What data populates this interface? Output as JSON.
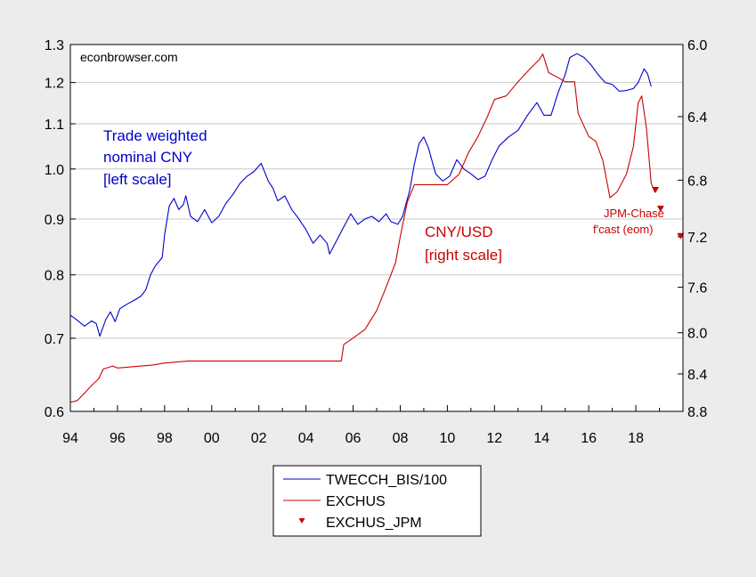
{
  "chart_data": {
    "type": "line",
    "watermark": "econbrowser.com",
    "x_ticks": [
      "94",
      "96",
      "98",
      "00",
      "02",
      "04",
      "06",
      "08",
      "10",
      "12",
      "14",
      "16",
      "18"
    ],
    "xlim": [
      1994.0,
      2020.0
    ],
    "left_axis": {
      "scale": "log",
      "ylim": [
        0.6,
        1.3
      ],
      "ticks": [
        "0.6",
        "0.7",
        "0.8",
        "0.9",
        "1.0",
        "1.1",
        "1.2",
        "1.3"
      ],
      "gridlines": [
        0.7,
        0.8,
        0.9,
        1.0,
        1.1,
        1.2
      ]
    },
    "right_axis": {
      "scale": "reciprocal",
      "ylim": [
        8.8,
        6.0
      ],
      "ticks": [
        "6.0",
        "6.4",
        "6.8",
        "7.2",
        "7.6",
        "8.0",
        "8.4",
        "8.8"
      ]
    },
    "annotations": {
      "twc": [
        "Trade weighted",
        "nominal CNY",
        "[left scale]"
      ],
      "exc": [
        "CNY/USD",
        "[right scale]"
      ],
      "jpm": [
        "JPM-Chase",
        "f'cast (eom)"
      ]
    },
    "legend": {
      "placement": "bottom-center",
      "entries": [
        "TWECCH_BIS/100",
        "EXCHUS",
        "EXCHUS_JPM"
      ]
    },
    "series": [
      {
        "name": "TWECCH_BIS/100",
        "axis": "left",
        "color": "#0000cc",
        "points": [
          [
            1994.0,
            0.735
          ],
          [
            1994.3,
            0.727
          ],
          [
            1994.6,
            0.718
          ],
          [
            1994.9,
            0.726
          ],
          [
            1995.1,
            0.722
          ],
          [
            1995.25,
            0.703
          ],
          [
            1995.5,
            0.728
          ],
          [
            1995.7,
            0.74
          ],
          [
            1995.9,
            0.725
          ],
          [
            1996.1,
            0.745
          ],
          [
            1996.4,
            0.752
          ],
          [
            1996.7,
            0.758
          ],
          [
            1997.0,
            0.765
          ],
          [
            1997.2,
            0.775
          ],
          [
            1997.4,
            0.8
          ],
          [
            1997.6,
            0.815
          ],
          [
            1997.9,
            0.83
          ],
          [
            1998.0,
            0.87
          ],
          [
            1998.2,
            0.925
          ],
          [
            1998.4,
            0.94
          ],
          [
            1998.6,
            0.918
          ],
          [
            1998.8,
            0.928
          ],
          [
            1998.9,
            0.945
          ],
          [
            1999.1,
            0.905
          ],
          [
            1999.4,
            0.895
          ],
          [
            1999.7,
            0.918
          ],
          [
            2000.0,
            0.893
          ],
          [
            2000.3,
            0.905
          ],
          [
            2000.6,
            0.93
          ],
          [
            2000.9,
            0.948
          ],
          [
            2001.2,
            0.97
          ],
          [
            2001.5,
            0.985
          ],
          [
            2001.8,
            0.995
          ],
          [
            2002.1,
            1.012
          ],
          [
            2002.4,
            0.975
          ],
          [
            2002.6,
            0.96
          ],
          [
            2002.8,
            0.935
          ],
          [
            2003.1,
            0.945
          ],
          [
            2003.4,
            0.918
          ],
          [
            2003.7,
            0.9
          ],
          [
            2004.0,
            0.88
          ],
          [
            2004.3,
            0.855
          ],
          [
            2004.6,
            0.87
          ],
          [
            2004.9,
            0.855
          ],
          [
            2005.0,
            0.836
          ],
          [
            2005.3,
            0.86
          ],
          [
            2005.6,
            0.885
          ],
          [
            2005.9,
            0.91
          ],
          [
            2006.2,
            0.89
          ],
          [
            2006.5,
            0.9
          ],
          [
            2006.8,
            0.905
          ],
          [
            2007.1,
            0.895
          ],
          [
            2007.4,
            0.91
          ],
          [
            2007.6,
            0.895
          ],
          [
            2007.9,
            0.89
          ],
          [
            2008.1,
            0.905
          ],
          [
            2008.4,
            0.955
          ],
          [
            2008.6,
            1.01
          ],
          [
            2008.8,
            1.055
          ],
          [
            2009.0,
            1.07
          ],
          [
            2009.2,
            1.045
          ],
          [
            2009.5,
            0.99
          ],
          [
            2009.8,
            0.975
          ],
          [
            2010.1,
            0.985
          ],
          [
            2010.4,
            1.02
          ],
          [
            2010.7,
            1.0
          ],
          [
            2011.0,
            0.99
          ],
          [
            2011.3,
            0.978
          ],
          [
            2011.6,
            0.985
          ],
          [
            2011.9,
            1.02
          ],
          [
            2012.2,
            1.05
          ],
          [
            2012.6,
            1.07
          ],
          [
            2013.0,
            1.085
          ],
          [
            2013.4,
            1.12
          ],
          [
            2013.8,
            1.15
          ],
          [
            2014.1,
            1.12
          ],
          [
            2014.4,
            1.12
          ],
          [
            2014.7,
            1.175
          ],
          [
            2015.0,
            1.22
          ],
          [
            2015.2,
            1.265
          ],
          [
            2015.5,
            1.275
          ],
          [
            2015.8,
            1.265
          ],
          [
            2016.1,
            1.245
          ],
          [
            2016.4,
            1.22
          ],
          [
            2016.7,
            1.2
          ],
          [
            2017.0,
            1.195
          ],
          [
            2017.3,
            1.178
          ],
          [
            2017.6,
            1.18
          ],
          [
            2017.9,
            1.185
          ],
          [
            2018.1,
            1.2
          ],
          [
            2018.35,
            1.235
          ],
          [
            2018.5,
            1.222
          ],
          [
            2018.65,
            1.19
          ]
        ]
      },
      {
        "name": "EXCHUS",
        "axis": "right",
        "color": "#cc0000",
        "points": [
          [
            1994.0,
            8.7
          ],
          [
            1994.3,
            8.68
          ],
          [
            1994.6,
            8.6
          ],
          [
            1994.9,
            8.52
          ],
          [
            1995.2,
            8.45
          ],
          [
            1995.4,
            8.35
          ],
          [
            1995.8,
            8.32
          ],
          [
            1996.0,
            8.34
          ],
          [
            1996.5,
            8.33
          ],
          [
            1997.0,
            8.32
          ],
          [
            1997.5,
            8.31
          ],
          [
            1998.0,
            8.29
          ],
          [
            1998.5,
            8.28
          ],
          [
            1999.0,
            8.27
          ],
          [
            2000.0,
            8.27
          ],
          [
            2001.0,
            8.27
          ],
          [
            2002.0,
            8.27
          ],
          [
            2003.0,
            8.27
          ],
          [
            2004.0,
            8.27
          ],
          [
            2005.0,
            8.27
          ],
          [
            2005.5,
            8.27
          ],
          [
            2005.6,
            8.11
          ],
          [
            2006.0,
            8.05
          ],
          [
            2006.5,
            7.97
          ],
          [
            2007.0,
            7.8
          ],
          [
            2007.4,
            7.6
          ],
          [
            2007.8,
            7.4
          ],
          [
            2008.0,
            7.2
          ],
          [
            2008.3,
            6.95
          ],
          [
            2008.6,
            6.83
          ],
          [
            2009.0,
            6.83
          ],
          [
            2010.0,
            6.83
          ],
          [
            2010.5,
            6.76
          ],
          [
            2010.9,
            6.62
          ],
          [
            2011.3,
            6.52
          ],
          [
            2011.7,
            6.4
          ],
          [
            2012.0,
            6.3
          ],
          [
            2012.5,
            6.28
          ],
          [
            2013.0,
            6.2
          ],
          [
            2013.5,
            6.13
          ],
          [
            2013.9,
            6.08
          ],
          [
            2014.05,
            6.05
          ],
          [
            2014.3,
            6.15
          ],
          [
            2014.6,
            6.17
          ],
          [
            2015.0,
            6.2
          ],
          [
            2015.4,
            6.2
          ],
          [
            2015.55,
            6.38
          ],
          [
            2016.0,
            6.52
          ],
          [
            2016.3,
            6.55
          ],
          [
            2016.6,
            6.67
          ],
          [
            2016.9,
            6.92
          ],
          [
            2017.2,
            6.88
          ],
          [
            2017.6,
            6.76
          ],
          [
            2017.9,
            6.58
          ],
          [
            2018.1,
            6.32
          ],
          [
            2018.25,
            6.28
          ],
          [
            2018.45,
            6.47
          ],
          [
            2018.65,
            6.82
          ],
          [
            2018.8,
            6.88
          ]
        ]
      },
      {
        "name": "EXCHUS_JPM",
        "axis": "right",
        "color": "#cc0000",
        "marker": "triangle-down",
        "points": [
          [
            2018.83,
            6.87
          ],
          [
            2019.05,
            7.0
          ],
          [
            2019.9,
            7.2
          ]
        ]
      }
    ]
  }
}
